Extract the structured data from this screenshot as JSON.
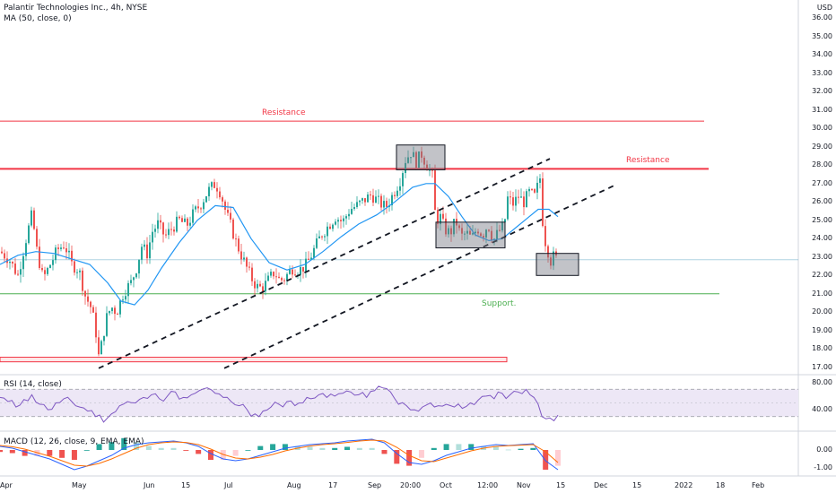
{
  "symbol": {
    "title": "Palantir Technologies Inc., 4h, NYSE",
    "ma_label": "MA (50, close, 0)",
    "currency": "USD"
  },
  "indicators": {
    "rsi_label": "RSI (14, close)",
    "macd_label": "MACD (12, 26, close, 9, EMA, EMA)"
  },
  "annotations": {
    "resistance_upper": "Resistance",
    "resistance_main": "Resistance",
    "support": "Support."
  },
  "price_axis": [
    "36.00",
    "35.00",
    "34.00",
    "33.00",
    "32.00",
    "31.00",
    "30.00",
    "29.00",
    "28.00",
    "27.00",
    "26.00",
    "25.00",
    "24.00",
    "23.00",
    "22.00",
    "21.00",
    "20.00",
    "19.00",
    "18.00",
    "17.00"
  ],
  "rsi_axis": [
    "80.00",
    "40.00"
  ],
  "macd_axis": [
    "0.00",
    "-1.00"
  ],
  "time_axis": [
    "Apr",
    "May",
    "Jun",
    "15",
    "Jul",
    "Aug",
    "17",
    "Sep",
    "20:00",
    "Oct",
    "12:00",
    "Nov",
    "15",
    "Dec",
    "15",
    "2022",
    "18",
    "Feb"
  ],
  "colors": {
    "up": "#26a69a",
    "down": "#ef5350",
    "ma": "#2196f3",
    "resistance": "#f23645",
    "support": "#4caf50",
    "current_price": "#5fa8c4",
    "rsi": "#7e57c2",
    "rsi_band": "#ede7f6"
  },
  "chart_data": {
    "type": "candlestick",
    "title": "Palantir Technologies Inc., 4h, NYSE",
    "overlay": "MA (50, close, 0)",
    "ylim": [
      16.6,
      36.6
    ],
    "resistance_levels": [
      30.4,
      27.8
    ],
    "support_level": 21.0,
    "current_price": 22.85,
    "close_path": [
      [
        0,
        23.3
      ],
      [
        10,
        22.9
      ],
      [
        20,
        22.0
      ],
      [
        30,
        24.2
      ],
      [
        36,
        25.4
      ],
      [
        40,
        23.6
      ],
      [
        48,
        21.8
      ],
      [
        56,
        22.6
      ],
      [
        64,
        23.4
      ],
      [
        72,
        23.7
      ],
      [
        80,
        22.6
      ],
      [
        88,
        22.3
      ],
      [
        95,
        20.9
      ],
      [
        101,
        20.3
      ],
      [
        106,
        19.3
      ],
      [
        110,
        17.6
      ],
      [
        114,
        18.4
      ],
      [
        118,
        19.6
      ],
      [
        124,
        20.3
      ],
      [
        130,
        20.0
      ],
      [
        138,
        21.1
      ],
      [
        146,
        21.6
      ],
      [
        152,
        22.4
      ],
      [
        158,
        23.6
      ],
      [
        164,
        23.2
      ],
      [
        170,
        24.4
      ],
      [
        176,
        24.8
      ],
      [
        184,
        24.1
      ],
      [
        192,
        24.6
      ],
      [
        200,
        25.0
      ],
      [
        208,
        24.7
      ],
      [
        216,
        25.4
      ],
      [
        224,
        25.9
      ],
      [
        232,
        26.6
      ],
      [
        240,
        27.0
      ],
      [
        246,
        26.5
      ],
      [
        252,
        25.4
      ],
      [
        258,
        24.6
      ],
      [
        264,
        23.7
      ],
      [
        270,
        23.0
      ],
      [
        276,
        22.3
      ],
      [
        282,
        21.7
      ],
      [
        288,
        21.3
      ],
      [
        294,
        21.4
      ],
      [
        300,
        21.8
      ],
      [
        306,
        22.2
      ],
      [
        312,
        21.7
      ],
      [
        318,
        21.9
      ],
      [
        326,
        22.4
      ],
      [
        334,
        22.3
      ],
      [
        342,
        22.6
      ],
      [
        350,
        23.4
      ],
      [
        358,
        24.2
      ],
      [
        366,
        24.7
      ],
      [
        374,
        25.2
      ],
      [
        382,
        24.9
      ],
      [
        390,
        25.6
      ],
      [
        398,
        25.8
      ],
      [
        406,
        26.1
      ],
      [
        414,
        26.4
      ],
      [
        422,
        26.0
      ],
      [
        430,
        25.7
      ],
      [
        438,
        26.4
      ],
      [
        446,
        27.2
      ],
      [
        452,
        28.3
      ],
      [
        458,
        28.7
      ],
      [
        464,
        28.2
      ],
      [
        470,
        28.6
      ],
      [
        476,
        28.0
      ],
      [
        482,
        27.4
      ],
      [
        486,
        24.8
      ],
      [
        490,
        25.3
      ],
      [
        496,
        24.5
      ],
      [
        502,
        24.3
      ],
      [
        508,
        25.0
      ],
      [
        514,
        24.1
      ],
      [
        520,
        24.3
      ],
      [
        526,
        24.0
      ],
      [
        532,
        24.6
      ],
      [
        538,
        24.2
      ],
      [
        544,
        24.8
      ],
      [
        550,
        23.9
      ],
      [
        556,
        24.4
      ],
      [
        562,
        24.7
      ],
      [
        566,
        26.2
      ],
      [
        572,
        25.9
      ],
      [
        578,
        26.3
      ],
      [
        584,
        26.0
      ],
      [
        590,
        26.5
      ],
      [
        596,
        26.3
      ],
      [
        602,
        27.3
      ],
      [
        606,
        24.2
      ],
      [
        610,
        23.5
      ],
      [
        614,
        22.8
      ],
      [
        618,
        23.1
      ],
      [
        622,
        22.7
      ]
    ],
    "ma_path": [
      [
        0,
        22.6
      ],
      [
        20,
        23.1
      ],
      [
        40,
        23.3
      ],
      [
        60,
        23.2
      ],
      [
        80,
        22.9
      ],
      [
        100,
        22.6
      ],
      [
        120,
        21.6
      ],
      [
        135,
        20.6
      ],
      [
        150,
        20.4
      ],
      [
        165,
        21.2
      ],
      [
        180,
        22.4
      ],
      [
        200,
        23.8
      ],
      [
        220,
        25.0
      ],
      [
        240,
        25.8
      ],
      [
        260,
        25.7
      ],
      [
        280,
        24.0
      ],
      [
        300,
        22.7
      ],
      [
        320,
        22.3
      ],
      [
        340,
        22.6
      ],
      [
        360,
        23.3
      ],
      [
        380,
        24.1
      ],
      [
        400,
        24.8
      ],
      [
        420,
        25.3
      ],
      [
        440,
        26.0
      ],
      [
        460,
        26.8
      ],
      [
        475,
        27.0
      ],
      [
        485,
        27.0
      ],
      [
        500,
        26.3
      ],
      [
        515,
        25.2
      ],
      [
        530,
        24.2
      ],
      [
        545,
        23.9
      ],
      [
        560,
        24.0
      ],
      [
        575,
        24.6
      ],
      [
        590,
        25.2
      ],
      [
        600,
        25.6
      ],
      [
        612,
        25.6
      ],
      [
        622,
        25.2
      ]
    ],
    "rsi": {
      "ylim": [
        10,
        90
      ],
      "bands": [
        70,
        30
      ],
      "values": [
        58,
        52,
        44,
        55,
        62,
        48,
        40,
        50,
        56,
        52,
        44,
        38,
        30,
        22,
        34,
        46,
        52,
        50,
        58,
        62,
        56,
        60,
        66,
        58,
        62,
        68,
        72,
        64,
        58,
        52,
        46,
        40,
        34,
        38,
        44,
        48,
        52,
        46,
        50,
        56,
        62,
        58,
        60,
        64,
        66,
        62,
        58,
        68,
        72,
        66,
        48,
        46,
        40,
        44,
        50,
        46,
        48,
        44,
        42,
        50,
        54,
        60,
        56,
        64,
        62,
        66,
        70,
        58,
        30,
        28,
        32
      ]
    },
    "macd": {
      "ylim": [
        -1.4,
        1.0
      ],
      "macd_values": [
        0.2,
        0.1,
        -0.1,
        -0.3,
        -0.5,
        -0.8,
        -1.1,
        -0.9,
        -0.6,
        -0.3,
        0.1,
        0.3,
        0.4,
        0.45,
        0.5,
        0.4,
        0.2,
        -0.2,
        -0.5,
        -0.6,
        -0.5,
        -0.3,
        -0.1,
        0.1,
        0.2,
        0.3,
        0.35,
        0.4,
        0.5,
        0.55,
        0.6,
        0.4,
        -0.2,
        -0.7,
        -0.8,
        -0.6,
        -0.3,
        -0.1,
        0.1,
        0.2,
        0.3,
        0.25,
        0.3,
        0.35,
        -0.6,
        -1.1
      ],
      "signal_values": [
        0.25,
        0.18,
        0.05,
        -0.15,
        -0.35,
        -0.6,
        -0.85,
        -0.9,
        -0.75,
        -0.5,
        -0.2,
        0.1,
        0.3,
        0.4,
        0.45,
        0.42,
        0.3,
        0.05,
        -0.25,
        -0.45,
        -0.5,
        -0.4,
        -0.25,
        -0.05,
        0.1,
        0.22,
        0.3,
        0.35,
        0.42,
        0.5,
        0.55,
        0.5,
        0.15,
        -0.3,
        -0.6,
        -0.65,
        -0.45,
        -0.25,
        -0.05,
        0.1,
        0.2,
        0.24,
        0.27,
        0.3,
        -0.1,
        -0.7
      ]
    }
  }
}
